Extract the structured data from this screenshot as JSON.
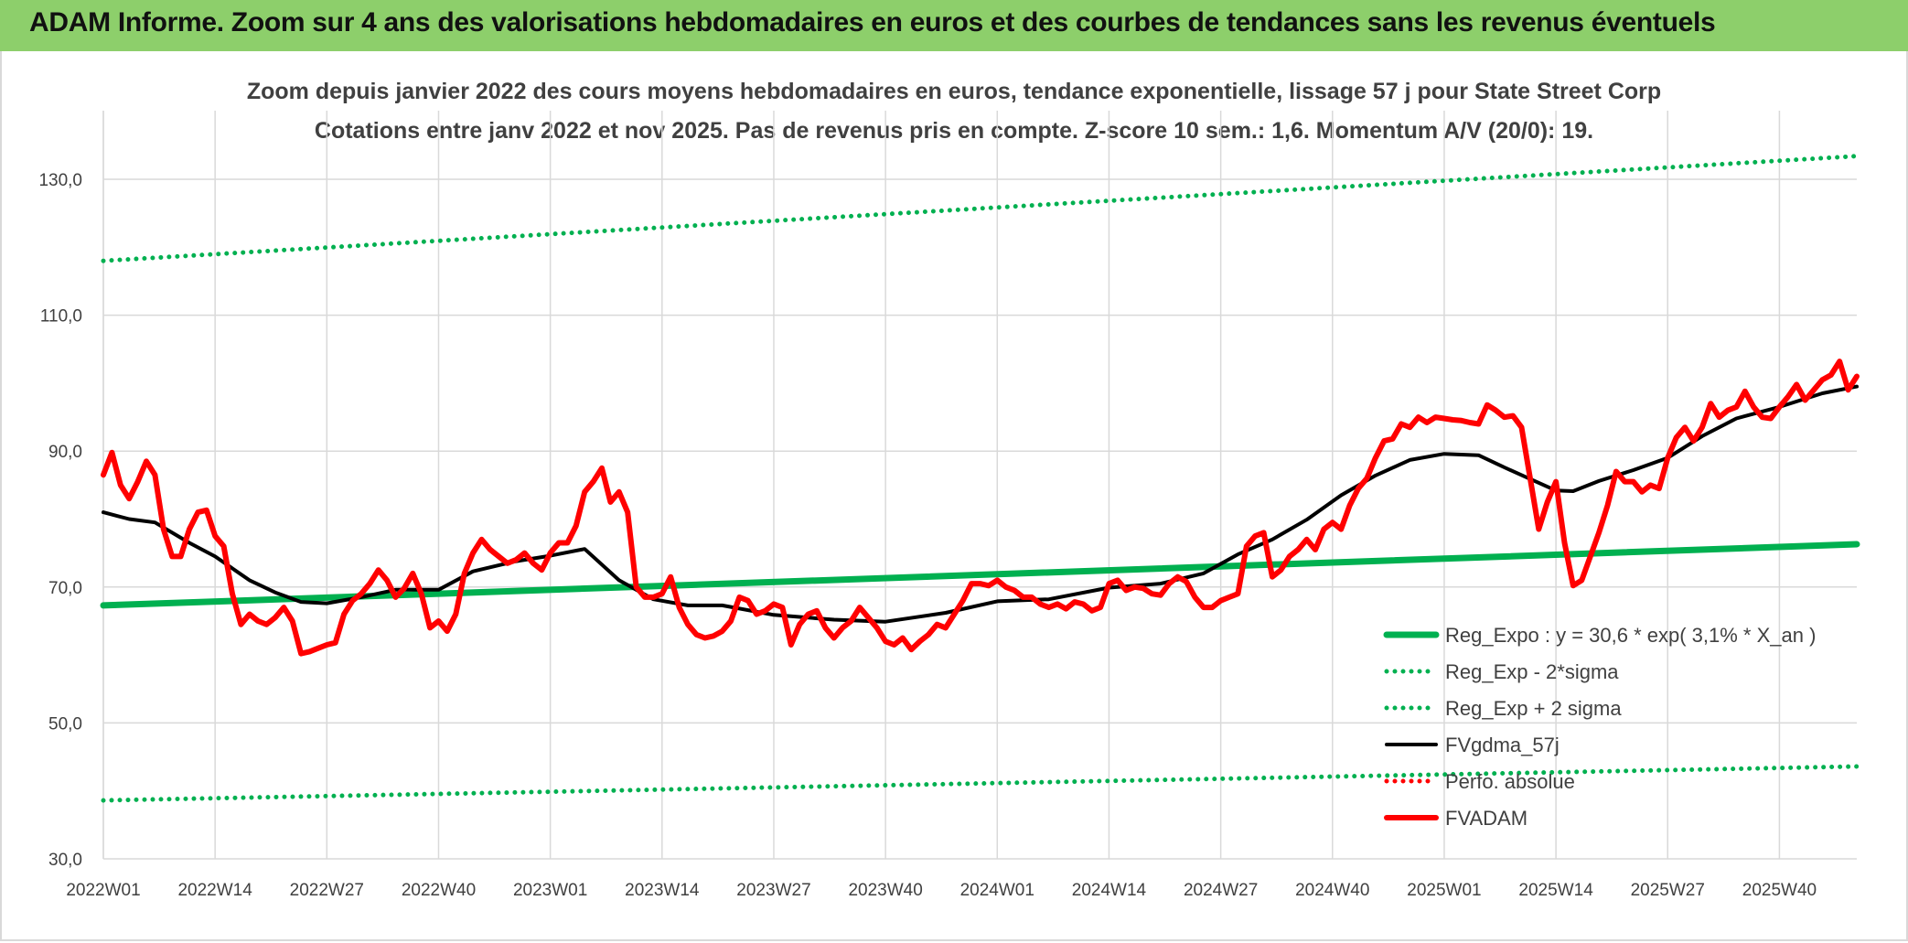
{
  "banner": {
    "title": "ADAM Informe. Zoom sur 4 ans des valorisations hebdomadaires en euros et des courbes de tendances sans les revenus éventuels"
  },
  "colors": {
    "banner_bg": "#8dcf6b",
    "trend_green": "#00b050",
    "price_red": "#ff0000",
    "sma_black": "#000000"
  },
  "chart_data": {
    "type": "line",
    "title": "Zoom depuis janvier 2022 des cours moyens hebdomadaires en euros, tendance exponentielle, lissage 57 j pour State Street Corp",
    "subtitle": "Cotations entre janv 2022 et nov 2025. Pas de revenus pris en compte. Z-score 10 sem.: 1,6. Momentum A/V (20/0): 19.",
    "ylim": [
      30,
      140
    ],
    "yticks": [
      "30,0",
      "50,0",
      "70,0",
      "90,0",
      "110,0",
      "130,0"
    ],
    "ytick_values": [
      30,
      50,
      70,
      90,
      110,
      130
    ],
    "x_tick_labels": [
      "2022W01",
      "2022W14",
      "2022W27",
      "2022W40",
      "2023W01",
      "2023W14",
      "2023W27",
      "2023W40",
      "2024W01",
      "2024W14",
      "2024W27",
      "2024W40",
      "2025W01",
      "2025W14",
      "2025W27",
      "2025W40"
    ],
    "x_tick_weeks": [
      0,
      13,
      26,
      39,
      52,
      65,
      78,
      91,
      104,
      117,
      130,
      143,
      156,
      169,
      182,
      195
    ],
    "x_last_week": 204,
    "grid": true,
    "legend_position": "bottom-right",
    "series": [
      {
        "name": "Reg_Expo : y = 30,6 * exp( 3,1% *  X_an )",
        "style": "solid",
        "color": "#00b050",
        "width": 7,
        "x": [
          0,
          204
        ],
        "values": [
          67.3,
          76.3
        ]
      },
      {
        "name": "Reg_Exp - 2*sigma",
        "style": "dotted",
        "color": "#00b050",
        "width": 5,
        "x": [
          0,
          204
        ],
        "values": [
          38.6,
          43.6
        ]
      },
      {
        "name": "Reg_Exp + 2 sigma",
        "style": "dotted",
        "color": "#00b050",
        "width": 5,
        "x": [
          0,
          204
        ],
        "values": [
          118.0,
          133.4
        ]
      },
      {
        "name": "FVgdma_57j",
        "style": "solid",
        "color": "#000000",
        "width": 4,
        "x": [
          0,
          3,
          6,
          10,
          13,
          17,
          20,
          23,
          26,
          30,
          34,
          39,
          43,
          48,
          52,
          56,
          60,
          64,
          68,
          72,
          78,
          85,
          91,
          98,
          104,
          110,
          117,
          123,
          128,
          132,
          136,
          140,
          144,
          148,
          152,
          156,
          160,
          163,
          166,
          169,
          171,
          174,
          178,
          182,
          186,
          190,
          195,
          200,
          204
        ],
        "values": [
          81.0,
          80.0,
          79.5,
          76.5,
          74.5,
          71.0,
          69.2,
          67.8,
          67.6,
          68.5,
          69.6,
          69.6,
          72.3,
          73.8,
          74.6,
          75.6,
          71.0,
          68.2,
          67.3,
          67.3,
          65.9,
          65.2,
          64.9,
          66.2,
          67.9,
          68.2,
          69.9,
          70.5,
          72.0,
          74.8,
          77.0,
          79.9,
          83.5,
          86.4,
          88.7,
          89.6,
          89.4,
          87.6,
          85.9,
          84.2,
          84.1,
          85.6,
          87.2,
          89.0,
          92.2,
          94.8,
          96.5,
          98.5,
          99.5
        ]
      },
      {
        "name": "Perfo. absolue",
        "style": "dotted",
        "color": "#ff0000",
        "width": 5,
        "x": [],
        "values": []
      },
      {
        "name": "FVADAM",
        "style": "solid",
        "color": "#ff0000",
        "width": 6,
        "x": [
          0,
          1,
          2,
          3,
          4,
          5,
          6,
          7,
          8,
          9,
          10,
          11,
          12,
          13,
          14,
          15,
          16,
          17,
          18,
          19,
          20,
          21,
          22,
          23,
          24,
          25,
          26,
          27,
          28,
          29,
          30,
          31,
          32,
          33,
          34,
          35,
          36,
          37,
          38,
          39,
          40,
          41,
          42,
          43,
          44,
          45,
          46,
          47,
          48,
          49,
          50,
          51,
          52,
          53,
          54,
          55,
          56,
          57,
          58,
          59,
          60,
          61,
          62,
          63,
          64,
          65,
          66,
          67,
          68,
          69,
          70,
          71,
          72,
          73,
          74,
          75,
          76,
          77,
          78,
          79,
          80,
          81,
          82,
          83,
          84,
          85,
          86,
          87,
          88,
          89,
          90,
          91,
          92,
          93,
          94,
          95,
          96,
          97,
          98,
          99,
          100,
          101,
          102,
          103,
          104,
          105,
          106,
          107,
          108,
          109,
          110,
          111,
          112,
          113,
          114,
          115,
          116,
          117,
          118,
          119,
          120,
          121,
          122,
          123,
          124,
          125,
          126,
          127,
          128,
          129,
          130,
          131,
          132,
          133,
          134,
          135,
          136,
          137,
          138,
          139,
          140,
          141,
          142,
          143,
          144,
          145,
          146,
          147,
          148,
          149,
          150,
          151,
          152,
          153,
          154,
          155,
          156,
          157,
          158,
          159,
          160,
          161,
          162,
          163,
          164,
          165,
          166,
          167,
          168,
          169,
          170,
          171,
          172,
          173,
          174,
          175,
          176,
          177,
          178,
          179,
          180,
          181,
          182,
          183,
          184,
          185,
          186,
          187,
          188,
          189,
          190,
          191,
          192,
          193,
          194,
          195,
          196,
          197,
          198,
          199,
          200,
          201,
          202,
          203,
          204
        ],
        "values": [
          86.5,
          89.8,
          85.0,
          83.0,
          85.5,
          88.5,
          86.5,
          78.5,
          74.5,
          74.5,
          78.5,
          81.0,
          81.3,
          77.5,
          76.0,
          69.0,
          64.5,
          66.0,
          65.0,
          64.5,
          65.5,
          67.0,
          65.0,
          60.2,
          60.5,
          61.0,
          61.5,
          61.8,
          66.0,
          68.0,
          69.0,
          70.5,
          72.5,
          71.0,
          68.5,
          69.8,
          72.0,
          69.0,
          64.0,
          65.0,
          63.5,
          66.0,
          72.0,
          75.0,
          77.0,
          75.5,
          74.5,
          73.5,
          74.0,
          75.0,
          73.5,
          72.5,
          75.0,
          76.5,
          76.5,
          79.0,
          84.0,
          85.5,
          87.5,
          82.5,
          84.0,
          81.0,
          70.0,
          68.5,
          68.5,
          69.0,
          71.5,
          67.0,
          64.5,
          63.0,
          62.5,
          62.8,
          63.5,
          65.0,
          68.5,
          68.0,
          66.0,
          66.5,
          67.5,
          67.0,
          61.5,
          64.5,
          66.0,
          66.5,
          64.0,
          62.5,
          64.0,
          65.0,
          67.0,
          65.5,
          64.0,
          62.0,
          61.5,
          62.5,
          60.8,
          62.0,
          63.0,
          64.5,
          64.0,
          66.0,
          68.0,
          70.5,
          70.5,
          70.2,
          71.0,
          70.0,
          69.5,
          68.5,
          68.5,
          67.5,
          67.0,
          67.5,
          66.8,
          67.8,
          67.5,
          66.5,
          67.0,
          70.5,
          71.0,
          69.5,
          70.0,
          69.8,
          69.0,
          68.8,
          70.5,
          71.5,
          70.8,
          68.5,
          67.0,
          67.0,
          68.0,
          68.5,
          69.0,
          76.0,
          77.5,
          78.0,
          71.5,
          72.5,
          74.5,
          75.5,
          77.0,
          75.5,
          78.5,
          79.5,
          78.5,
          82.0,
          84.5,
          86.0,
          89.0,
          91.5,
          91.8,
          94.0,
          93.5,
          95.0,
          94.2,
          95.0,
          94.8,
          94.6,
          94.5,
          94.2,
          94.0,
          96.8,
          96.0,
          95.0,
          95.2,
          93.5,
          86.0,
          78.5,
          82.5,
          85.5,
          76.5,
          70.2,
          71.0,
          74.5,
          78.0,
          82.0,
          87.0,
          85.5,
          85.5,
          84.0,
          85.0,
          84.5,
          89.0,
          92.0,
          93.5,
          91.5,
          93.5,
          97.0,
          95.0,
          96.0,
          96.5,
          98.8,
          96.5,
          95.0,
          94.8,
          96.5,
          98.0,
          99.8,
          97.5,
          99.0,
          100.5,
          101.2,
          103.2,
          99.0,
          101.0
        ]
      }
    ]
  }
}
